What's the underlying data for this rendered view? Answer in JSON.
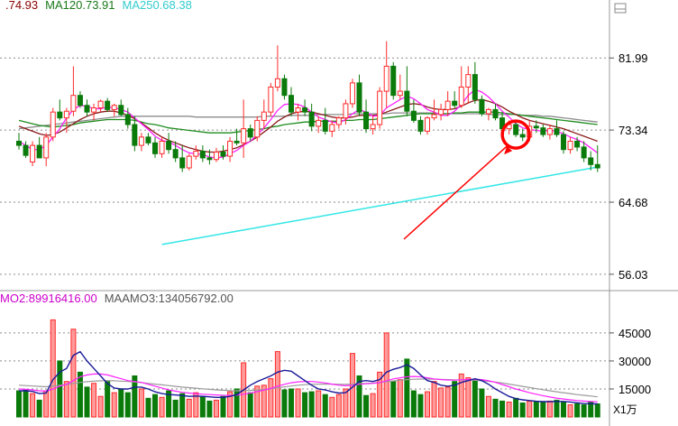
{
  "chart_data": {
    "type": "candlestick",
    "price_panel": {
      "legend": [
        {
          "text": ".74.93",
          "color": "#8b0000"
        },
        {
          "text": "MA120.73.91",
          "color": "#1a7a1a"
        },
        {
          "text": "MA250.68.38",
          "color": "#33cccc"
        }
      ],
      "y_ticks": [
        "81.99",
        "73.34",
        "64.68",
        "56.03"
      ],
      "y_tick_values": [
        81.99,
        73.34,
        64.68,
        56.03
      ],
      "ylim": [
        54.5,
        87.0
      ],
      "grid": "dotted horizontal",
      "candles": [
        [
          72,
          73,
          71,
          71.5
        ],
        [
          71.5,
          72,
          70,
          70.3
        ],
        [
          69.5,
          72,
          69,
          71.5
        ],
        [
          71.5,
          72.5,
          70,
          70
        ],
        [
          70,
          73,
          69,
          72.5
        ],
        [
          72.5,
          76,
          72,
          75.5
        ],
        [
          75.5,
          77,
          74.5,
          74.8
        ],
        [
          74.8,
          76,
          73,
          75.6
        ],
        [
          75.6,
          81,
          75,
          77.5
        ],
        [
          77.5,
          78,
          76,
          76.3
        ],
        [
          76.3,
          77,
          75,
          75.5
        ],
        [
          75.5,
          76.5,
          74.5,
          76
        ],
        [
          76,
          77,
          75.5,
          76.8
        ],
        [
          76.8,
          77.2,
          75.5,
          75.8
        ],
        [
          75.8,
          76.5,
          75,
          76.3
        ],
        [
          76.3,
          77,
          75,
          75.2
        ],
        [
          75.2,
          76,
          73.5,
          74
        ],
        [
          74,
          75,
          70.8,
          71.5
        ],
        [
          71.5,
          73,
          70.8,
          72.5
        ],
        [
          72.5,
          73,
          71.5,
          71.8
        ],
        [
          71.8,
          72.5,
          70,
          70.5
        ],
        [
          70.5,
          72.5,
          70,
          72
        ],
        [
          72,
          73,
          70.5,
          71
        ],
        [
          71,
          72,
          69.5,
          70
        ],
        [
          70,
          71.5,
          68.3,
          68.8
        ],
        [
          68.8,
          70.5,
          68.5,
          70.2
        ],
        [
          70.2,
          71.5,
          69.8,
          70.8
        ],
        [
          70.8,
          71.5,
          69.5,
          70
        ],
        [
          70,
          71,
          69.2,
          69.8
        ],
        [
          69.8,
          71.2,
          69.5,
          70.7
        ],
        [
          70.7,
          71.5,
          69.8,
          70.2
        ],
        [
          70.2,
          72.5,
          69.5,
          72
        ],
        [
          72,
          73.5,
          71.5,
          71.8
        ],
        [
          71.8,
          77,
          70,
          73.5
        ],
        [
          73.5,
          74,
          72,
          72.5
        ],
        [
          72.5,
          75,
          72,
          74.5
        ],
        [
          74.5,
          77,
          73.5,
          75.5
        ],
        [
          75.5,
          79,
          75,
          78.5
        ],
        [
          78.5,
          83.5,
          78,
          79.5
        ],
        [
          79.5,
          80,
          77,
          77.5
        ],
        [
          77.5,
          78.5,
          75,
          75.5
        ],
        [
          75.5,
          76.5,
          74.5,
          76
        ],
        [
          76,
          77,
          75,
          75.5
        ],
        [
          75.5,
          76.5,
          73.2,
          73.8
        ],
        [
          73.8,
          75,
          73,
          74.5
        ],
        [
          74.5,
          76,
          72.8,
          73.2
        ],
        [
          73.2,
          74.5,
          72.5,
          74
        ],
        [
          74,
          75,
          73.5,
          74.8
        ],
        [
          74.8,
          77,
          74,
          76.5
        ],
        [
          76.5,
          79.5,
          76,
          79
        ],
        [
          79,
          80,
          75,
          75.5
        ],
        [
          75.5,
          77,
          73,
          73.5
        ],
        [
          73.5,
          75,
          72.8,
          74
        ],
        [
          74,
          78.5,
          73.5,
          78
        ],
        [
          78,
          84,
          76,
          81
        ],
        [
          81,
          81.5,
          77,
          77.5
        ],
        [
          77.5,
          80,
          77,
          78
        ],
        [
          78,
          81,
          75,
          75.6
        ],
        [
          75.6,
          77,
          74.2,
          74.5
        ],
        [
          74.5,
          75,
          72.8,
          73.2
        ],
        [
          73.2,
          75,
          72.8,
          74.8
        ],
        [
          74.8,
          77,
          74.5,
          75.2
        ],
        [
          75.2,
          76.5,
          74.5,
          75.8
        ],
        [
          75.8,
          78,
          75,
          76.8
        ],
        [
          76.8,
          78,
          76,
          76.3
        ],
        [
          76.3,
          81,
          76,
          78.5
        ],
        [
          78.5,
          81,
          76.5,
          80
        ],
        [
          80,
          81.5,
          76.5,
          77
        ],
        [
          77,
          77.5,
          75,
          75.3
        ],
        [
          75.3,
          76,
          74.5,
          75.8
        ],
        [
          75.8,
          76.5,
          74.5,
          74.8
        ],
        [
          74.8,
          75.5,
          73,
          73.5
        ],
        [
          73.5,
          74.5,
          72.8,
          74
        ],
        [
          74,
          74.5,
          72.5,
          72.8
        ],
        [
          72.8,
          73.5,
          72,
          72.5
        ],
        [
          72.5,
          74.5,
          72,
          73.8
        ],
        [
          73.8,
          74.5,
          73,
          73.6
        ],
        [
          73.6,
          74,
          72.5,
          72.8
        ],
        [
          72.8,
          74,
          72.2,
          73.5
        ],
        [
          73.5,
          74.5,
          72.5,
          72.8
        ],
        [
          72.8,
          73.2,
          70.5,
          71
        ],
        [
          71,
          72.5,
          70.5,
          72
        ],
        [
          72,
          72.5,
          70.8,
          71.3
        ],
        [
          71.3,
          72,
          69.5,
          70
        ],
        [
          70,
          70.8,
          68.5,
          69.2
        ],
        [
          69.2,
          71.5,
          68.3,
          68.8
        ]
      ],
      "ma_short": [
        72,
        71.5,
        71,
        71,
        71.5,
        72.5,
        73.5,
        74.8,
        75.8,
        76.3,
        76.2,
        75.9,
        75.9,
        76.1,
        76,
        75.8,
        75.5,
        74.8,
        74.1,
        73.4,
        72.6,
        72.1,
        71.9,
        71.5,
        71,
        70.6,
        70.5,
        70.4,
        70.1,
        70,
        70.1,
        70.5,
        70.9,
        71.5,
        72,
        72.8,
        73.6,
        74.6,
        75.7,
        76.4,
        76.5,
        76.4,
        76.1,
        75.5,
        74.9,
        74.6,
        74.3,
        74.2,
        74.6,
        75.3,
        75.8,
        75.5,
        75,
        75.1,
        76,
        76.5,
        77,
        77.4,
        77.1,
        76.5,
        75.8,
        75.5,
        75.1,
        75.1,
        75.6,
        76.4,
        77.5,
        78.2,
        77.9,
        77.3,
        76.5,
        75.6,
        74.9,
        74.1,
        73.6,
        73.4,
        73.3,
        73.2,
        73.3,
        73.2,
        72.9,
        72.5,
        72.2,
        71.8,
        71.2,
        70.6
      ],
      "ma_mid": [
        73.8,
        73.5,
        73.2,
        72.9,
        72.7,
        72.8,
        73.1,
        73.6,
        74.1,
        74.6,
        75,
        75.3,
        75.5,
        75.6,
        75.6,
        75.4,
        75.1,
        74.7,
        74.2,
        73.6,
        73,
        72.5,
        72.1,
        71.8,
        71.5,
        71.2,
        71,
        70.8,
        70.7,
        70.7,
        70.8,
        71,
        71.2,
        71.6,
        72,
        72.5,
        73.1,
        73.7,
        74.4,
        74.9,
        75.3,
        75.5,
        75.6,
        75.5,
        75.3,
        75.1,
        74.9,
        74.8,
        74.8,
        74.9,
        75.1,
        75.1,
        75.1,
        75.2,
        75.5,
        75.8,
        76.1,
        76.4,
        76.5,
        76.4,
        76.1,
        75.9,
        75.8,
        75.8,
        75.9,
        76.2,
        76.6,
        76.9,
        77,
        76.8,
        76.5,
        76.1,
        75.6,
        75.2,
        74.8,
        74.5,
        74.3,
        74.1,
        73.9,
        73.7,
        73.5,
        73.2,
        72.9,
        72.6,
        72.3,
        72
      ],
      "ma_long1": [
        74.5,
        74.3,
        74.1,
        73.9,
        73.8,
        73.7,
        73.8,
        73.9,
        74,
        74.2,
        74.3,
        74.4,
        74.5,
        74.6,
        74.6,
        74.6,
        74.6,
        74.5,
        74.3,
        74.1,
        74,
        73.8,
        73.6,
        73.5,
        73.4,
        73.3,
        73.2,
        73.1,
        73,
        73,
        73,
        73,
        73.1,
        73.2,
        73.3,
        73.4,
        73.5,
        73.7,
        73.8,
        74,
        74.1,
        74.2,
        74.3,
        74.3,
        74.4,
        74.4,
        74.4,
        74.4,
        74.5,
        74.5,
        74.6,
        74.6,
        74.6,
        74.7,
        74.8,
        74.9,
        75,
        75.1,
        75.2,
        75.3,
        75.3,
        75.3,
        75.3,
        75.3,
        75.4,
        75.4,
        75.5,
        75.5,
        75.5,
        75.5,
        75.5,
        75.4,
        75.3,
        75.2,
        75.1,
        75,
        74.9,
        74.8,
        74.7,
        74.6,
        74.5,
        74.4,
        74.3,
        74.2,
        74.1,
        74
      ],
      "ma_long2": [
        73.5,
        73.6,
        73.7,
        73.8,
        73.9,
        74,
        74.1,
        74.2,
        74.3,
        74.4,
        74.5,
        74.6,
        74.7,
        74.8,
        74.9,
        75,
        75,
        75,
        75,
        75,
        75,
        75,
        75,
        75,
        75,
        75,
        74.9,
        74.9,
        74.9,
        74.9,
        74.9,
        74.9,
        74.9,
        74.9,
        74.9,
        74.9,
        75,
        75,
        75,
        75,
        75.1,
        75.1,
        75.1,
        75.1,
        75.2,
        75.2,
        75.2,
        75.2,
        75.2,
        75.3,
        75.3,
        75.3,
        75.3,
        75.3,
        75.3,
        75.4,
        75.4,
        75.4,
        75.4,
        75.4,
        75.4,
        75.4,
        75.3,
        75.3,
        75.3,
        75.3,
        75.3,
        75.3,
        75.3,
        75.2,
        75.2,
        75.2,
        75.2,
        75.2,
        75.1,
        75.1,
        75.1,
        75,
        75,
        74.9,
        74.8,
        74.7,
        74.6,
        74.5,
        74.4,
        74.3
      ],
      "ma250_line": {
        "x": [
          21,
          85
        ],
        "y": [
          59.6,
          68.9
        ]
      }
    },
    "volume_panel": {
      "legend": [
        {
          "text": "MO2:89916416.00",
          "color": "#cc00cc"
        },
        {
          "text": "MAAMO3:134056792.00",
          "color": "#555555"
        }
      ],
      "y_ticks": [
        "45000",
        "30000",
        "15000"
      ],
      "y_tick_values": [
        45000,
        30000,
        15000
      ],
      "ylim": [
        0,
        58000
      ],
      "unit_label": "X1万",
      "volumes": [
        14000,
        14500,
        12500,
        9000,
        14000,
        52000,
        30000,
        19000,
        47000,
        24000,
        16000,
        18000,
        11000,
        19000,
        13000,
        15000,
        13000,
        22000,
        15000,
        10000,
        12000,
        10500,
        14000,
        9000,
        12500,
        9500,
        13000,
        11000,
        8500,
        9000,
        11000,
        13500,
        15000,
        29000,
        13000,
        16500,
        17000,
        20500,
        35000,
        14500,
        15000,
        15000,
        13000,
        13500,
        14000,
        12000,
        10500,
        12000,
        15000,
        34000,
        22000,
        11500,
        12500,
        24000,
        45000,
        19000,
        20000,
        31000,
        14000,
        12000,
        13500,
        19000,
        15500,
        16000,
        19000,
        23000,
        21000,
        20000,
        15000,
        11000,
        9500,
        8500,
        8000,
        10000,
        7500,
        8500,
        8200,
        8000,
        8500,
        9000,
        8000,
        6500,
        7000,
        6500,
        8000,
        7000
      ],
      "ma_blue": [
        14000,
        14000,
        13700,
        12500,
        12800,
        20000,
        24000,
        26000,
        33000,
        35000,
        30000,
        26000,
        22000,
        18000,
        15500,
        15000,
        15000,
        16000,
        16000,
        15000,
        13500,
        12500,
        12000,
        11800,
        11500,
        11000,
        11200,
        11000,
        10800,
        10500,
        10500,
        11000,
        12000,
        14500,
        17000,
        19000,
        20500,
        22000,
        24000,
        25000,
        24500,
        22000,
        19500,
        17000,
        15000,
        14500,
        13500,
        12800,
        13000,
        16000,
        19000,
        19500,
        19000,
        20000,
        24000,
        25500,
        26500,
        28000,
        26000,
        22500,
        19500,
        18500,
        17000,
        16500,
        17000,
        18500,
        19500,
        20500,
        19500,
        17500,
        15000,
        13000,
        11000,
        9800,
        9200,
        8800,
        8400,
        8200,
        8200,
        8300,
        8300,
        8000,
        7600,
        7200,
        7100,
        7000
      ],
      "ma_magenta": [
        15000,
        14800,
        14500,
        14000,
        13800,
        15000,
        16500,
        17500,
        19500,
        21500,
        22500,
        23000,
        23000,
        22500,
        21500,
        20500,
        19500,
        19000,
        18500,
        17500,
        16500,
        15500,
        14500,
        13800,
        13200,
        12800,
        12500,
        12200,
        12000,
        11800,
        11600,
        11500,
        11700,
        12200,
        12800,
        13600,
        14400,
        15300,
        16500,
        17500,
        18300,
        18800,
        19000,
        19000,
        18700,
        18200,
        17600,
        17000,
        16700,
        17000,
        17500,
        17800,
        18000,
        18400,
        19400,
        20400,
        21000,
        21500,
        21700,
        21500,
        21000,
        20400,
        20000,
        19800,
        19700,
        19900,
        20100,
        20200,
        20000,
        19400,
        18500,
        17400,
        16200,
        15000,
        14000,
        13000,
        12200,
        11400,
        10700,
        10100,
        9600,
        9200,
        8800,
        8500,
        8300,
        8100
      ],
      "ma_gray": [
        17000,
        16800,
        16600,
        16400,
        16200,
        16600,
        17000,
        17400,
        18000,
        18500,
        18900,
        19200,
        19400,
        19500,
        19400,
        19200,
        19000,
        18700,
        18400,
        18000,
        17600,
        17200,
        16800,
        16400,
        16000,
        15700,
        15400,
        15100,
        14800,
        14500,
        14300,
        14100,
        14000,
        14100,
        14200,
        14400,
        14700,
        15100,
        15600,
        16100,
        16600,
        17000,
        17300,
        17500,
        17600,
        17600,
        17600,
        17500,
        17500,
        17600,
        17800,
        18000,
        18200,
        18500,
        18900,
        19300,
        19700,
        20000,
        20200,
        20300,
        20300,
        20200,
        20100,
        20000,
        19900,
        19800,
        19700,
        19600,
        19400,
        19100,
        18700,
        18200,
        17600,
        17000,
        16400,
        15800,
        15200,
        14600,
        14000,
        13500,
        13000,
        12500,
        12000,
        11600,
        11200,
        10800
      ]
    },
    "annotation": {
      "type": "circle-and-arrow",
      "color": "#ff0000",
      "target_index": 73
    }
  }
}
